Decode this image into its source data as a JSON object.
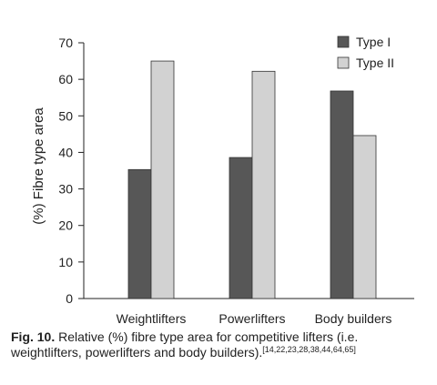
{
  "chart_data": {
    "type": "bar",
    "categories": [
      "Weightlifters",
      "Powerlifters",
      "Body builders"
    ],
    "series": [
      {
        "name": "Type I",
        "values": [
          35.3,
          38.6,
          56.8
        ],
        "color": "#575757"
      },
      {
        "name": "Type II",
        "values": [
          65.0,
          62.2,
          44.6
        ],
        "color": "#d2d2d2"
      }
    ],
    "xlabel": "",
    "ylabel": "(%) Fibre type area",
    "ylim": [
      0,
      70
    ],
    "yticks": [
      0,
      10,
      20,
      30,
      40,
      50,
      60,
      70
    ],
    "grid": false,
    "legend_position": "top-right"
  },
  "caption": {
    "label": "Fig. 10.",
    "text": " Relative (%) fibre type area for competitive lifters (i.e. weightlifters, powerlifters and body builders).",
    "refs": "[14,22,23,28,38,44,64,65]"
  }
}
